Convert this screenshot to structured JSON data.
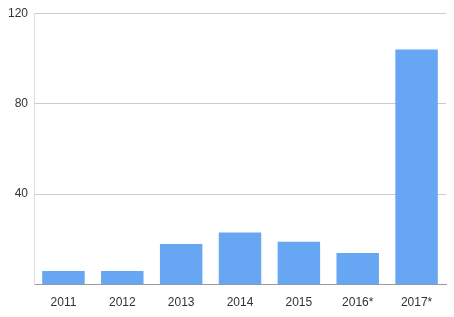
{
  "chart_data": {
    "type": "bar",
    "categories": [
      "2011",
      "2012",
      "2013",
      "2014",
      "2015",
      "2016*",
      "2017*"
    ],
    "values": [
      6,
      6,
      18,
      23,
      19,
      14,
      104
    ],
    "color": "#66a6f2",
    "ylim": [
      0,
      120
    ],
    "yticks": [
      40,
      80,
      120
    ],
    "grid": true
  }
}
